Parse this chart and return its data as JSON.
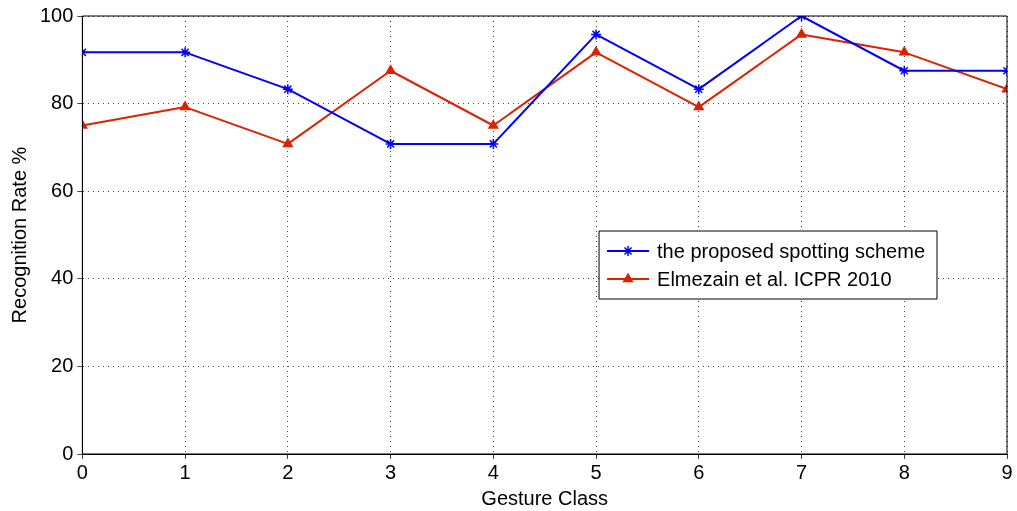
{
  "chart_data": {
    "type": "line",
    "xlabel": "Gesture Class",
    "ylabel": "Recognition Rate %",
    "x": [
      0,
      1,
      2,
      3,
      4,
      5,
      6,
      7,
      8,
      9
    ],
    "series": [
      {
        "name": "the proposed spotting scheme",
        "color": "#0000ff",
        "marker": "cross",
        "values": [
          91.7,
          91.7,
          83.3,
          70.8,
          70.8,
          95.8,
          83.3,
          100,
          87.5,
          87.5
        ]
      },
      {
        "name": "Elmezain et al. ICPR 2010",
        "color": "#dd2200",
        "marker": "triangle",
        "values": [
          75,
          79.2,
          70.8,
          87.5,
          75,
          91.7,
          79.2,
          95.8,
          91.7,
          83.3
        ]
      }
    ],
    "xlim": [
      0,
      9
    ],
    "xticks": [
      0,
      1,
      2,
      3,
      4,
      5,
      6,
      7,
      8,
      9
    ],
    "ylim": [
      0,
      100
    ],
    "yticks": [
      0,
      20,
      40,
      60,
      80,
      100
    ],
    "grid": true,
    "legend": "right",
    "line_style": "solid"
  }
}
